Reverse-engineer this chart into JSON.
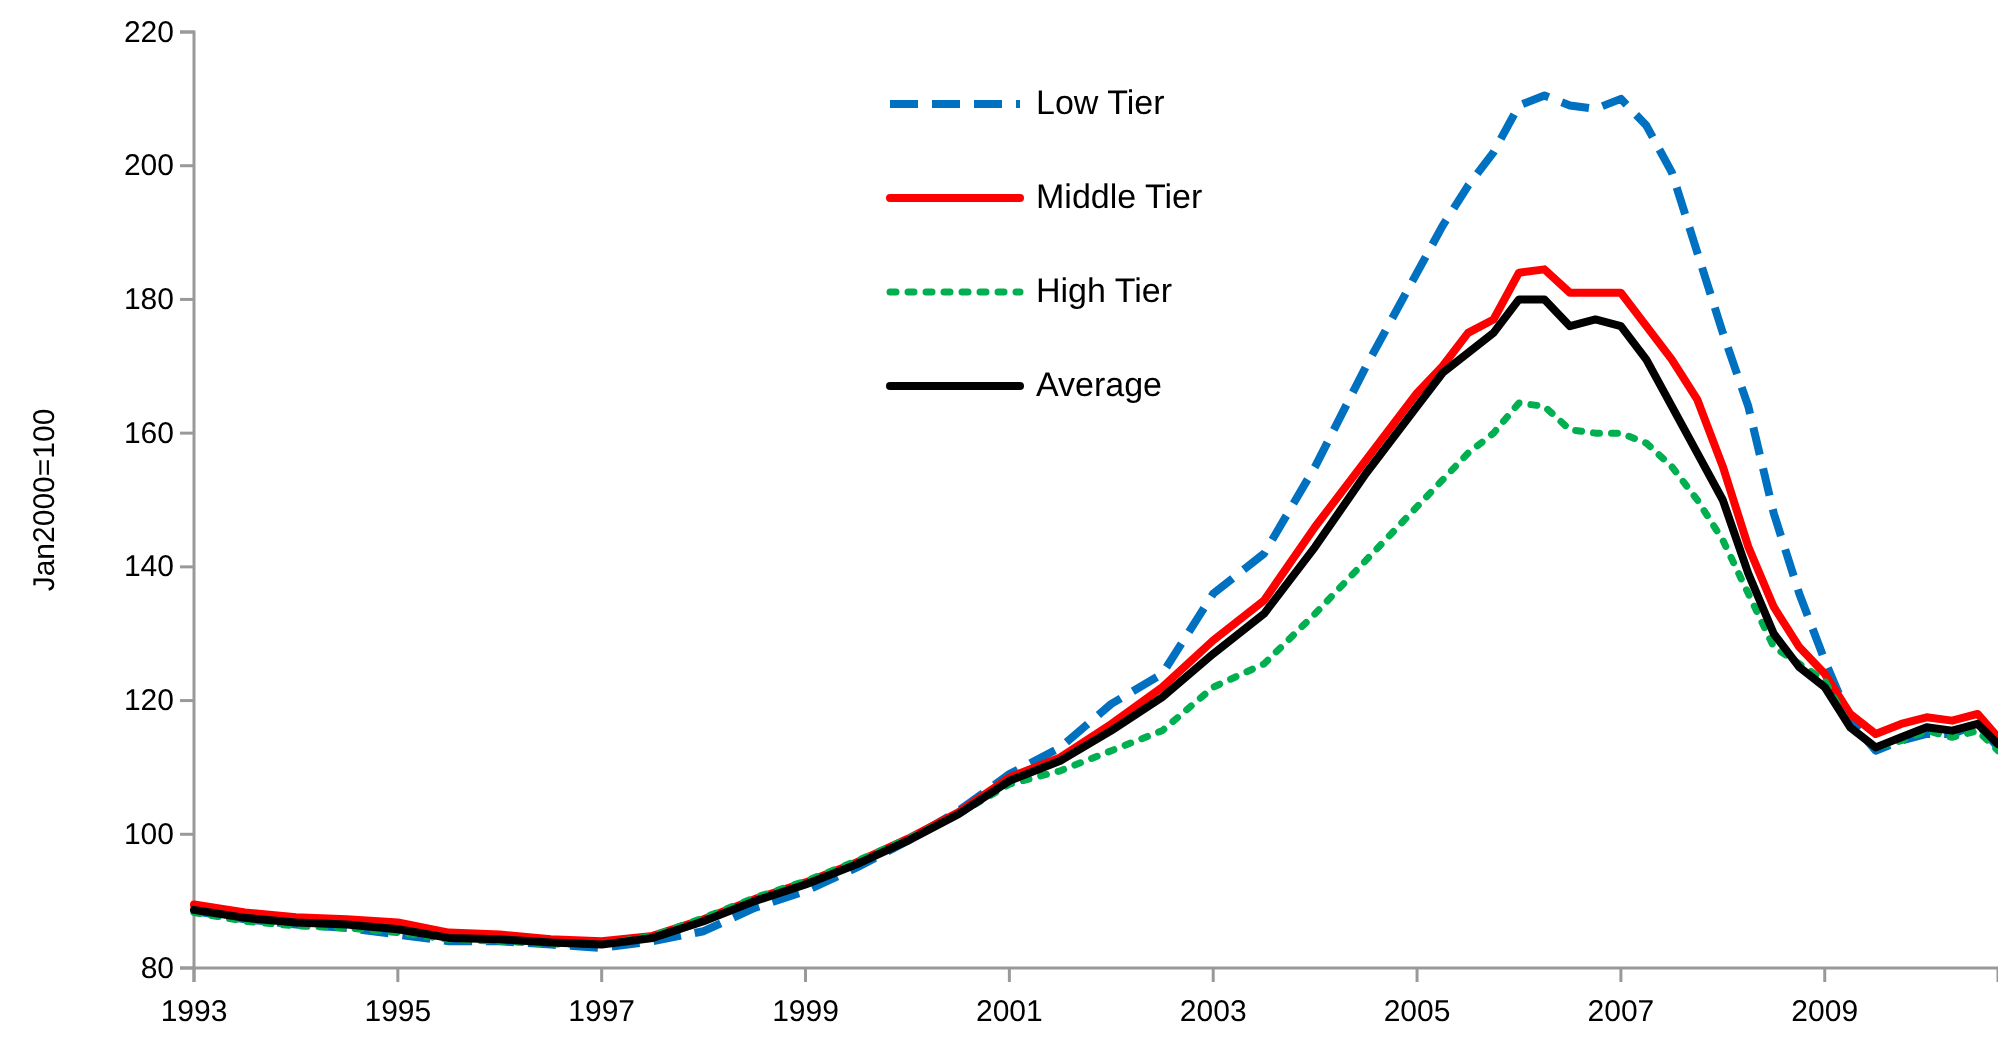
{
  "chart_data": {
    "type": "line",
    "ylabel": "Jan2000=100",
    "x": [
      1993,
      1993.5,
      1994,
      1994.5,
      1995,
      1995.5,
      1996,
      1996.5,
      1997,
      1997.5,
      1998,
      1998.5,
      1999,
      1999.5,
      2000,
      2000.5,
      2001,
      2001.5,
      2002,
      2002.5,
      2003,
      2003.5,
      2004,
      2004.5,
      2005,
      2005.25,
      2005.5,
      2005.75,
      2006,
      2006.25,
      2006.5,
      2006.75,
      2007,
      2007.25,
      2007.5,
      2007.75,
      2008,
      2008.25,
      2008.5,
      2008.75,
      2009,
      2009.25,
      2009.5,
      2009.75,
      2010,
      2010.25,
      2010.5,
      2010.7
    ],
    "series": [
      {
        "name": "Low Tier",
        "color": "#0070c0",
        "line_style": "dashed",
        "values": [
          88.5,
          87.3,
          86.5,
          86,
          85,
          84,
          84,
          83.5,
          83,
          84,
          85.5,
          89,
          91.5,
          95,
          99,
          103.5,
          109,
          113,
          119.5,
          124,
          136,
          142,
          155,
          170,
          184,
          191,
          197,
          202,
          209,
          210.5,
          209,
          208.5,
          210,
          206,
          199,
          187,
          175,
          164,
          148,
          136,
          126,
          117,
          112.5,
          114,
          115,
          115,
          116.5,
          113
        ]
      },
      {
        "name": "Middle Tier",
        "color": "#ff0000",
        "line_style": "solid",
        "values": [
          89.5,
          88.3,
          87.6,
          87.3,
          86.8,
          85.3,
          85,
          84.3,
          84,
          84.8,
          87.3,
          90.3,
          92.8,
          95.8,
          99.3,
          103.3,
          108.5,
          111.5,
          116.5,
          122,
          129,
          135,
          146,
          156,
          166,
          170,
          175,
          177,
          184,
          184.5,
          181,
          181,
          181,
          176,
          171,
          165,
          155,
          143,
          134,
          128,
          124,
          118,
          115,
          116.5,
          117.5,
          117,
          118,
          114.5
        ]
      },
      {
        "name": "High Tier",
        "color": "#00b050",
        "line_style": "dotted",
        "values": [
          88.3,
          87,
          86.3,
          86,
          85.3,
          84.3,
          84,
          83.6,
          83.5,
          84.8,
          87.5,
          90.5,
          93,
          96,
          99.3,
          103,
          107.5,
          109.5,
          112.5,
          115.5,
          122,
          125.5,
          133,
          141,
          149,
          153,
          157,
          160,
          164.5,
          164,
          160.5,
          160,
          160,
          158.5,
          155,
          150,
          144,
          136,
          128,
          125.5,
          123,
          116,
          113,
          114,
          115.5,
          114.5,
          115.5,
          112.5
        ]
      },
      {
        "name": "Average",
        "color": "#000000",
        "line_style": "solid",
        "values": [
          88.7,
          87.5,
          86.8,
          86.5,
          85.8,
          84.5,
          84.3,
          83.8,
          83.5,
          84.5,
          87,
          90,
          92.5,
          95.5,
          99,
          103,
          108,
          111,
          115.5,
          120.5,
          127,
          133,
          143,
          154,
          164,
          169,
          172,
          175,
          180,
          180,
          176,
          177,
          176,
          171,
          164,
          157,
          150,
          139,
          130,
          125,
          122,
          116,
          113,
          114.5,
          116,
          115.5,
          116.5,
          113.5
        ]
      }
    ],
    "xlim": [
      1993,
      2010.7
    ],
    "xticks": [
      1993,
      1995,
      1997,
      1999,
      2001,
      2003,
      2005,
      2007,
      2009
    ],
    "ylim": [
      80,
      220
    ],
    "yticks": [
      80,
      100,
      120,
      140,
      160,
      180,
      200,
      220
    ],
    "grid": false,
    "legend": "top",
    "marker": "none"
  }
}
